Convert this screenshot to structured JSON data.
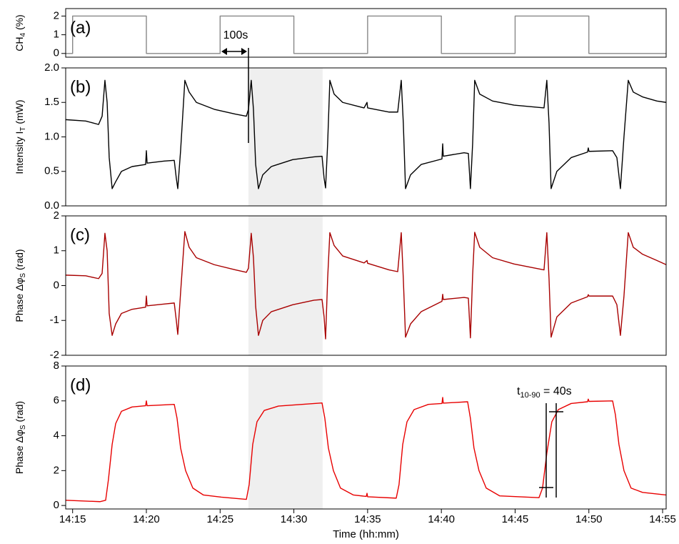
{
  "chart_data": [
    {
      "type": "line",
      "label": "(a)",
      "ylabel": [
        "CH",
        "4",
        " (%)"
      ],
      "annotation": "100s",
      "color": "#888888",
      "xlim": [
        854.53,
        895.24
      ],
      "ylim": [
        -0.2,
        2.4
      ],
      "yticks": [
        0,
        1,
        2
      ],
      "x": [
        854.53,
        855,
        855,
        860,
        860,
        865,
        865,
        870,
        870,
        875,
        875,
        880,
        880,
        885,
        885,
        890,
        890,
        895.24
      ],
      "values": [
        0,
        0,
        2,
        2,
        0,
        0,
        2,
        2,
        0,
        0,
        2,
        2,
        0,
        0,
        2,
        2,
        0,
        0
      ]
    },
    {
      "type": "line",
      "label": "(b)",
      "ylabel": [
        "Intensity I",
        "T",
        " (mW)"
      ],
      "color": "#000000",
      "xlim": [
        854.53,
        895.24
      ],
      "ylim": [
        0,
        2
      ],
      "yticks": [
        {
          "value": 0,
          "label": "0.0"
        },
        0.5,
        {
          "value": 1,
          "label": "1.0"
        },
        1.5,
        {
          "value": 2,
          "label": "2.0"
        }
      ],
      "highlight": [
        866.92,
        871.95
      ],
      "x": [
        854.53,
        855.89,
        856.76,
        857.0,
        857.19,
        857.34,
        857.48,
        857.68,
        857.92,
        858.31,
        859.03,
        859.95,
        860.0,
        860.05,
        861.21,
        861.89,
        862.03,
        862.13,
        862.32,
        862.61,
        862.9,
        863.39,
        864.6,
        866.05,
        866.78,
        866.92,
        867.11,
        867.26,
        867.41,
        867.6,
        867.89,
        868.47,
        869.92,
        871.37,
        871.91,
        872.05,
        872.15,
        872.29,
        872.44,
        872.73,
        873.31,
        874.76,
        874.96,
        875.0,
        876.46,
        877.04,
        877.28,
        877.42,
        877.57,
        877.91,
        878.63,
        880.04,
        880.09,
        880.13,
        881.54,
        881.83,
        881.97,
        882.12,
        882.26,
        882.6,
        883.47,
        884.93,
        886.96,
        887.15,
        887.3,
        887.44,
        887.83,
        888.8,
        889.91,
        889.96,
        890.01,
        891.61,
        891.9,
        892.14,
        892.38,
        892.67,
        893.01,
        893.64,
        894.61,
        895.24
      ],
      "values": [
        1.25,
        1.23,
        1.18,
        1.3,
        1.82,
        1.5,
        0.7,
        0.25,
        0.35,
        0.5,
        0.57,
        0.6,
        0.8,
        0.62,
        0.65,
        0.66,
        0.4,
        0.25,
        0.8,
        1.82,
        1.65,
        1.5,
        1.4,
        1.33,
        1.3,
        1.4,
        1.82,
        1.4,
        0.6,
        0.25,
        0.45,
        0.57,
        0.67,
        0.71,
        0.72,
        0.4,
        0.26,
        0.9,
        1.82,
        1.62,
        1.5,
        1.42,
        1.5,
        1.42,
        1.36,
        1.36,
        1.82,
        1.2,
        0.25,
        0.45,
        0.6,
        0.68,
        0.9,
        0.72,
        0.77,
        0.76,
        0.25,
        0.9,
        1.82,
        1.62,
        1.52,
        1.46,
        1.42,
        1.82,
        1.2,
        0.25,
        0.5,
        0.7,
        0.78,
        0.84,
        0.79,
        0.8,
        0.7,
        0.25,
        1.0,
        1.82,
        1.65,
        1.58,
        1.52,
        1.5
      ]
    },
    {
      "type": "line",
      "label": "(c)",
      "ylabel": [
        "Phase Δφ",
        "S",
        " (rad)"
      ],
      "color": "#a80000",
      "xlim": [
        854.53,
        895.24
      ],
      "ylim": [
        -2,
        2
      ],
      "yticks": [
        -2,
        -1,
        0,
        1,
        2
      ],
      "highlight": [
        866.92,
        871.95
      ],
      "x": [
        854.53,
        855.89,
        856.76,
        857.0,
        857.19,
        857.34,
        857.48,
        857.68,
        857.92,
        858.31,
        859.03,
        859.95,
        860.0,
        860.05,
        861.21,
        861.89,
        862.03,
        862.13,
        862.32,
        862.61,
        862.9,
        863.39,
        864.6,
        866.05,
        866.78,
        866.92,
        867.11,
        867.26,
        867.41,
        867.6,
        867.89,
        868.47,
        869.92,
        871.37,
        871.91,
        872.05,
        872.15,
        872.29,
        872.44,
        872.73,
        873.31,
        874.76,
        874.96,
        875.0,
        876.46,
        877.04,
        877.28,
        877.42,
        877.57,
        877.91,
        878.63,
        880.04,
        880.09,
        880.13,
        881.54,
        881.83,
        881.97,
        882.12,
        882.26,
        882.6,
        883.47,
        884.93,
        886.96,
        887.15,
        887.3,
        887.44,
        887.83,
        888.8,
        889.91,
        889.96,
        890.01,
        891.61,
        891.9,
        892.14,
        892.38,
        892.67,
        893.01,
        893.64,
        894.61,
        895.24
      ],
      "values": [
        0.3,
        0.28,
        0.2,
        0.35,
        1.5,
        1.0,
        -0.8,
        -1.43,
        -1.1,
        -0.8,
        -0.68,
        -0.62,
        -0.3,
        -0.58,
        -0.53,
        -0.5,
        -1.0,
        -1.4,
        -0.2,
        1.55,
        1.1,
        0.8,
        0.6,
        0.45,
        0.38,
        0.5,
        1.5,
        0.8,
        -0.6,
        -1.43,
        -1.0,
        -0.75,
        -0.55,
        -0.42,
        -0.4,
        -0.9,
        -1.53,
        0.2,
        1.52,
        1.15,
        0.85,
        0.65,
        0.72,
        0.64,
        0.45,
        0.4,
        1.52,
        0.2,
        -1.48,
        -1.1,
        -0.75,
        -0.45,
        -0.25,
        -0.4,
        -0.34,
        -0.36,
        -1.5,
        0.3,
        1.53,
        1.1,
        0.8,
        0.62,
        0.45,
        1.52,
        0.2,
        -1.48,
        -0.9,
        -0.5,
        -0.32,
        -0.26,
        -0.3,
        -0.3,
        -0.55,
        -1.43,
        -0.3,
        1.52,
        1.1,
        0.9,
        0.72,
        0.6
      ]
    },
    {
      "type": "line",
      "label": "(d)",
      "ylabel": [
        "Phase Δφ",
        "S",
        " (rad)"
      ],
      "annotation": [
        "t",
        "10-90",
        " = 40s"
      ],
      "color": "#e80000",
      "xlabel": "Time (hh:mm)",
      "xlim": [
        854.53,
        895.24
      ],
      "ylim": [
        -0.2,
        8
      ],
      "yticks": [
        0,
        2,
        4,
        6,
        8
      ],
      "xticks": [
        {
          "value": 855,
          "label": "14:15"
        },
        {
          "value": 860,
          "label": "14:20"
        },
        {
          "value": 865,
          "label": "14:25"
        },
        {
          "value": 870,
          "label": "14:30"
        },
        {
          "value": 875,
          "label": "14:35"
        },
        {
          "value": 880,
          "label": "14:40"
        },
        {
          "value": 885,
          "label": "14:45"
        },
        {
          "value": 890,
          "label": "14:50"
        },
        {
          "value": 895,
          "label": "14:55"
        }
      ],
      "highlight": [
        866.92,
        871.95
      ],
      "x": [
        854.53,
        856.85,
        857.24,
        857.43,
        857.68,
        857.92,
        858.31,
        859.03,
        859.95,
        860.0,
        860.05,
        861.89,
        862.08,
        862.32,
        862.66,
        863.15,
        863.87,
        865.08,
        866.78,
        866.97,
        867.21,
        867.5,
        867.99,
        868.95,
        871.91,
        872.1,
        872.34,
        872.68,
        873.16,
        874.04,
        874.91,
        874.96,
        875.0,
        876.94,
        877.13,
        877.38,
        877.67,
        878.15,
        879.12,
        880.04,
        880.09,
        880.13,
        881.78,
        881.97,
        882.21,
        882.55,
        883.04,
        883.96,
        886.62,
        886.86,
        887.15,
        887.49,
        887.93,
        888.8,
        889.91,
        889.96,
        890.01,
        891.61,
        891.8,
        892.04,
        892.38,
        892.86,
        893.64,
        895.24
      ],
      "values": [
        0.3,
        0.22,
        0.3,
        1.5,
        3.5,
        4.7,
        5.4,
        5.65,
        5.72,
        6.0,
        5.72,
        5.8,
        5.0,
        3.3,
        2.0,
        1.0,
        0.6,
        0.48,
        0.35,
        1.2,
        3.5,
        4.8,
        5.45,
        5.7,
        5.88,
        5.0,
        3.3,
        2.0,
        1.0,
        0.6,
        0.52,
        0.7,
        0.5,
        0.42,
        1.2,
        3.5,
        4.8,
        5.5,
        5.8,
        5.85,
        6.2,
        5.87,
        5.95,
        5.0,
        3.3,
        2.0,
        1.0,
        0.55,
        0.45,
        1.0,
        3.0,
        4.8,
        5.5,
        5.85,
        5.95,
        6.1,
        5.97,
        6.0,
        5.2,
        3.5,
        2.0,
        1.0,
        0.75,
        0.6
      ]
    }
  ]
}
